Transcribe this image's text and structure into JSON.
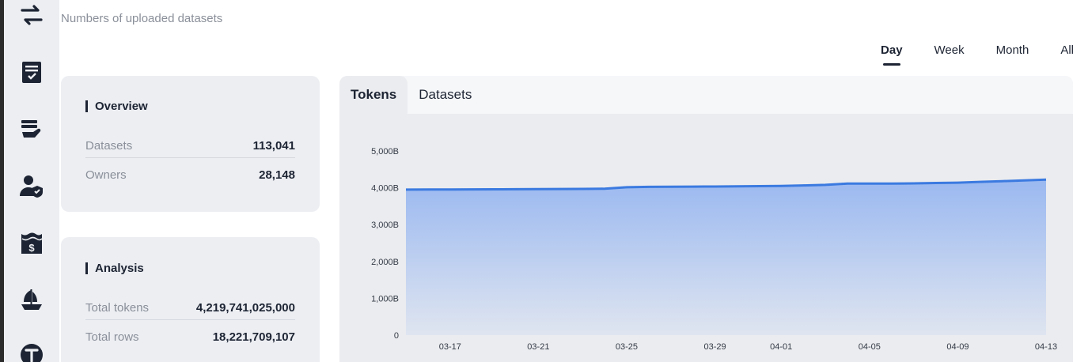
{
  "sidebar": {
    "icons": [
      {
        "name": "transfer-icon"
      },
      {
        "name": "checklist-icon"
      },
      {
        "name": "stack-hand-icon"
      },
      {
        "name": "user-shield-icon"
      },
      {
        "name": "money-water-icon"
      },
      {
        "name": "ship-icon"
      },
      {
        "name": "token-t-icon"
      }
    ]
  },
  "header": {
    "subtitle": "Numbers of uploaded datasets"
  },
  "periods": {
    "options": [
      "Day",
      "Week",
      "Month",
      "All"
    ],
    "selected": "Day"
  },
  "overview": {
    "title": "Overview",
    "rows": [
      {
        "label": "Datasets",
        "value": "113,041"
      },
      {
        "label": "Owners",
        "value": "28,148"
      }
    ]
  },
  "analysis": {
    "title": "Analysis",
    "rows": [
      {
        "label": "Total tokens",
        "value": "4,219,741,025,000"
      },
      {
        "label": "Total rows",
        "value": "18,221,709,107"
      }
    ]
  },
  "chart": {
    "tabs": [
      "Tokens",
      "Datasets"
    ],
    "active_tab": "Tokens"
  },
  "colors": {
    "line": "#3b7ae0",
    "fill_top": "#9ab8f0",
    "fill_bottom": "#dfe5f0"
  },
  "chart_data": {
    "type": "area",
    "xlabel": "",
    "ylabel": "",
    "ylim": [
      0,
      5000
    ],
    "y_ticks": [
      0,
      1000,
      2000,
      3000,
      4000,
      5000
    ],
    "y_tick_labels": [
      "0",
      "1,000B",
      "2,000B",
      "3,000B",
      "4,000B",
      "5,000B"
    ],
    "x_tick_labels": [
      "03-17",
      "03-21",
      "03-25",
      "03-29",
      "04-01",
      "04-05",
      "04-09",
      "04-13"
    ],
    "x_tick_indices": [
      2,
      6,
      10,
      14,
      17,
      21,
      25,
      29
    ],
    "x": [
      "03-15",
      "03-16",
      "03-17",
      "03-18",
      "03-19",
      "03-20",
      "03-21",
      "03-22",
      "03-23",
      "03-24",
      "03-25",
      "03-26",
      "03-27",
      "03-28",
      "03-29",
      "03-30",
      "03-31",
      "04-01",
      "04-02",
      "04-03",
      "04-04",
      "04-05",
      "04-06",
      "04-07",
      "04-08",
      "04-09",
      "04-10",
      "04-11",
      "04-12",
      "04-13"
    ],
    "series": [
      {
        "values": [
          3950,
          3952,
          3955,
          3958,
          3960,
          3962,
          3965,
          3968,
          3970,
          3975,
          4015,
          4025,
          4030,
          4032,
          4035,
          4040,
          4045,
          4050,
          4065,
          4080,
          4115,
          4115,
          4115,
          4120,
          4130,
          4140,
          4160,
          4180,
          4200,
          4220
        ]
      }
    ]
  }
}
